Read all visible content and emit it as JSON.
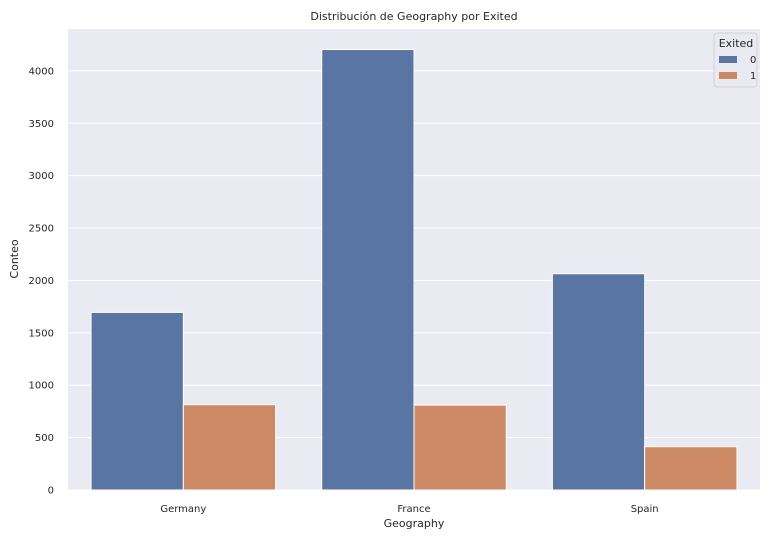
{
  "chart_data": {
    "type": "bar",
    "title": "Distribución de Geography por Exited",
    "xlabel": "Geography",
    "ylabel": "Conteo",
    "categories": [
      "Germany",
      "France",
      "Spain"
    ],
    "series": [
      {
        "name": "0",
        "values": [
          1695,
          4204,
          2064
        ],
        "color": "#5875a4"
      },
      {
        "name": "1",
        "values": [
          814,
          810,
          413
        ],
        "color": "#cc8963"
      }
    ],
    "ylim": [
      0,
      4400
    ],
    "yticks": [
      0,
      500,
      1000,
      1500,
      2000,
      2500,
      3000,
      3500,
      4000
    ],
    "grid": true,
    "background": "#eaeaf2",
    "legend": {
      "title": "Exited",
      "position": "top-right"
    }
  }
}
